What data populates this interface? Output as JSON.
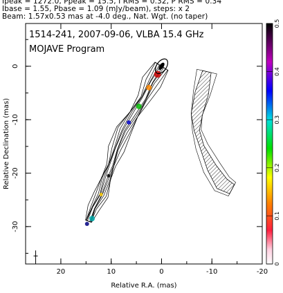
{
  "header": {
    "line1": "Ipeak = 1272.0, Ppeak = 15.5, I RMS = 0.32, P RMS = 0.34",
    "line2": "Ibase = 1.55, Pbase = 1.09 (mJy/beam), steps: x 2",
    "line3": "Beam: 1.57x0.53 mas at -4.0 deg., Nat. Wgt. (no taper)"
  },
  "chart_data": {
    "type": "contour",
    "title": "1514-241, 2007-09-06, VLBA 15.4 GHz",
    "subtitle": "MOJAVE Program",
    "xlabel": "Relative R.A. (mas)",
    "ylabel": "Relative Declination (mas)",
    "xlim": [
      27,
      -20
    ],
    "ylim": [
      -37,
      8
    ],
    "x_ticks": [
      20,
      10,
      0,
      -10,
      -20
    ],
    "y_ticks": [
      0,
      -10,
      -20,
      -30
    ],
    "colorbar": {
      "range": [
        0,
        0.5
      ],
      "ticks": [
        0,
        0.1,
        0.2,
        0.3,
        0.4,
        0.5
      ]
    },
    "core": {
      "x": 0.0,
      "y": 0.0
    },
    "stokes_i_jet": [
      [
        0,
        0
      ],
      [
        2,
        -3
      ],
      [
        3.5,
        -6
      ],
      [
        5.5,
        -9
      ],
      [
        7.5,
        -12
      ],
      [
        9,
        -15.5
      ],
      [
        10,
        -18.5
      ],
      [
        11,
        -21
      ],
      [
        12,
        -24
      ],
      [
        13.5,
        -26.5
      ],
      [
        14.5,
        -29
      ]
    ],
    "polarization_jet": [
      [
        -9,
        -1
      ],
      [
        -8,
        -5
      ],
      [
        -7,
        -9
      ],
      [
        -7,
        -12
      ],
      [
        -8,
        -15
      ],
      [
        -10,
        -19
      ],
      [
        -12,
        -22
      ],
      [
        -14,
        -23
      ]
    ],
    "beam": {
      "major": 1.57,
      "minor": 0.53,
      "pa": -4.0
    },
    "grid": false
  }
}
